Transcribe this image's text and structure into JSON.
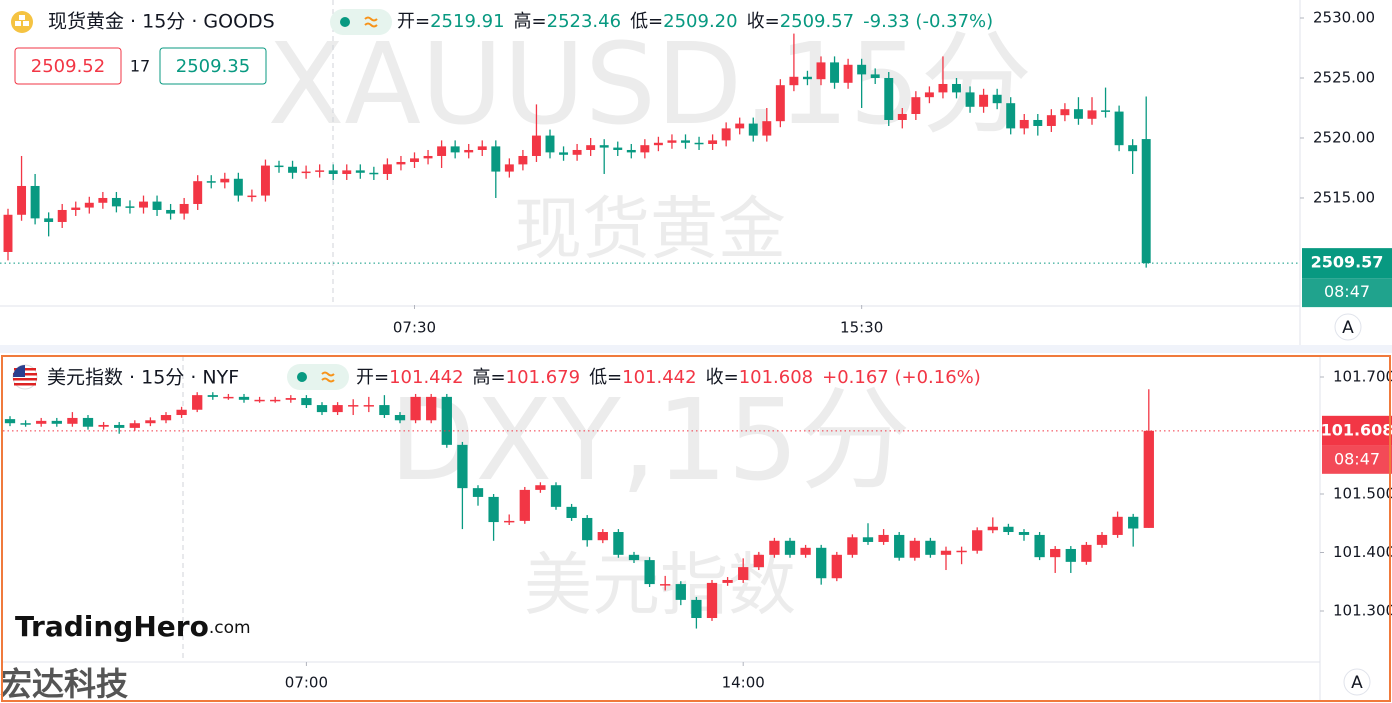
{
  "chart_data": [
    {
      "type": "candlestick",
      "title": "现货黄金 · 15分 · GOODS",
      "watermark": "XAUUSD,15分",
      "watermark_name": "现货黄金",
      "ohlc": [
        {
          "label": "开=",
          "value": "2519.91"
        },
        {
          "label": "高=",
          "value": "2523.46"
        },
        {
          "label": "低=",
          "value": "2509.20"
        },
        {
          "label": "收=",
          "value": "2509.57"
        }
      ],
      "change": "-9.33 (-0.37%)",
      "header_color": "#089981",
      "quote": {
        "bid": "2509.52",
        "spread": "17",
        "ask": "2509.35"
      },
      "countdown": "08:47",
      "scale_button": "A",
      "up_color": "#f23645",
      "down_color": "#089981",
      "grid": false,
      "ylim": [
        2506.08,
        2531.5
      ],
      "yticks": [
        {
          "value": 2530,
          "label": "2530.00"
        },
        {
          "value": 2525,
          "label": "2525.00"
        },
        {
          "value": 2520,
          "label": "2520.00"
        },
        {
          "value": 2515,
          "label": "2515.00"
        }
      ],
      "categories": [
        null,
        null,
        null,
        null,
        null,
        null,
        null,
        null,
        null,
        null,
        null,
        null,
        null,
        null,
        null,
        null,
        null,
        null,
        null,
        null,
        null,
        null,
        null,
        null,
        null,
        null,
        null,
        null,
        null,
        null,
        "07:30",
        null,
        null,
        null,
        null,
        null,
        null,
        null,
        null,
        null,
        null,
        null,
        null,
        null,
        null,
        null,
        null,
        null,
        null,
        null,
        null,
        null,
        null,
        null,
        null,
        null,
        null,
        null,
        null,
        null,
        null,
        null,
        null,
        "15:30",
        null,
        null,
        null,
        null,
        null,
        null,
        null,
        null,
        null,
        null,
        null,
        null,
        null,
        null,
        null,
        null,
        null,
        null,
        null,
        null,
        null
      ],
      "open": [
        2510.5,
        2513.6,
        2516.0,
        2513.3,
        2513.0,
        2514.0,
        2514.2,
        2514.6,
        2515.0,
        2514.3,
        2514.2,
        2514.7,
        2514.0,
        2513.7,
        2514.5,
        2516.4,
        2516.3,
        2516.6,
        2515.2,
        2515.2,
        2517.7,
        2517.6,
        2517.1,
        2517.2,
        2517.3,
        2517.0,
        2517.3,
        2517.1,
        2517.0,
        2517.8,
        2518.0,
        2518.3,
        2518.5,
        2519.3,
        2518.8,
        2519.0,
        2519.3,
        2517.2,
        2517.8,
        2518.5,
        2520.2,
        2518.8,
        2518.6,
        2519.0,
        2519.4,
        2519.2,
        2519.0,
        2518.8,
        2519.4,
        2519.6,
        2519.8,
        2519.6,
        2519.5,
        2519.8,
        2520.8,
        2521.2,
        2520.2,
        2521.4,
        2524.4,
        2525.1,
        2524.9,
        2526.3,
        2524.6,
        2526.1,
        2525.3,
        2525.0,
        2521.5,
        2522.0,
        2523.4,
        2523.8,
        2524.5,
        2523.8,
        2522.6,
        2523.6,
        2522.9,
        2520.8,
        2521.5,
        2521.0,
        2521.9,
        2522.4,
        2521.6,
        2522.3,
        2522.2,
        2519.4,
        2519.91
      ],
      "high": [
        2514.1,
        2518.5,
        2517.0,
        2513.8,
        2514.5,
        2514.7,
        2515.1,
        2515.5,
        2515.5,
        2514.8,
        2515.2,
        2515.2,
        2514.5,
        2515.0,
        2516.9,
        2516.9,
        2517.1,
        2517.1,
        2515.7,
        2518.2,
        2518.1,
        2518.1,
        2517.7,
        2517.8,
        2517.8,
        2517.8,
        2517.8,
        2517.6,
        2518.3,
        2518.5,
        2518.8,
        2519.0,
        2519.8,
        2519.8,
        2519.5,
        2519.8,
        2519.8,
        2518.3,
        2519.0,
        2522.8,
        2520.7,
        2519.3,
        2519.5,
        2520.0,
        2519.9,
        2519.7,
        2519.5,
        2519.9,
        2520.1,
        2520.3,
        2520.3,
        2520.1,
        2520.3,
        2521.3,
        2521.7,
        2521.7,
        2522.5,
        2524.9,
        2528.7,
        2525.6,
        2526.8,
        2526.8,
        2526.6,
        2526.6,
        2525.8,
        2525.5,
        2522.5,
        2523.9,
        2524.3,
        2526.8,
        2525.0,
        2524.3,
        2524.1,
        2524.1,
        2523.4,
        2522.0,
        2522.0,
        2522.4,
        2522.9,
        2523.4,
        2523.4,
        2524.2,
        2522.7,
        2519.9,
        2523.46
      ],
      "low": [
        2509.8,
        2513.1,
        2512.8,
        2511.8,
        2512.5,
        2513.5,
        2513.7,
        2514.1,
        2513.8,
        2513.7,
        2513.7,
        2513.5,
        2513.2,
        2513.2,
        2514.0,
        2515.8,
        2515.8,
        2514.7,
        2514.7,
        2514.7,
        2517.1,
        2516.6,
        2516.6,
        2516.7,
        2516.5,
        2516.5,
        2516.6,
        2516.5,
        2516.5,
        2517.3,
        2517.5,
        2517.8,
        2517.5,
        2518.3,
        2518.3,
        2518.5,
        2515.0,
        2516.7,
        2517.3,
        2518.0,
        2518.3,
        2518.1,
        2518.1,
        2518.5,
        2517.0,
        2518.5,
        2518.3,
        2518.3,
        2518.9,
        2519.1,
        2519.1,
        2519.0,
        2519.0,
        2519.3,
        2520.3,
        2519.7,
        2519.7,
        2520.9,
        2523.9,
        2524.4,
        2524.4,
        2524.1,
        2524.1,
        2522.5,
        2524.5,
        2521.0,
        2520.8,
        2521.5,
        2522.9,
        2523.3,
        2523.3,
        2522.1,
        2522.1,
        2522.4,
        2520.3,
        2520.3,
        2520.2,
        2520.5,
        2521.4,
        2521.1,
        2521.1,
        2521.7,
        2518.9,
        2517.0,
        2509.2
      ],
      "close": [
        2513.6,
        2516.0,
        2513.3,
        2513.0,
        2514.0,
        2514.2,
        2514.6,
        2515.0,
        2514.3,
        2514.2,
        2514.7,
        2514.0,
        2513.7,
        2514.5,
        2516.4,
        2516.3,
        2516.6,
        2515.2,
        2515.2,
        2517.7,
        2517.6,
        2517.1,
        2517.2,
        2517.3,
        2517.0,
        2517.3,
        2517.1,
        2517.0,
        2517.8,
        2518.0,
        2518.3,
        2518.5,
        2519.3,
        2518.8,
        2519.0,
        2519.3,
        2517.2,
        2517.8,
        2518.5,
        2520.2,
        2518.8,
        2518.6,
        2519.0,
        2519.4,
        2519.2,
        2519.0,
        2518.8,
        2519.4,
        2519.6,
        2519.8,
        2519.6,
        2519.5,
        2519.8,
        2520.8,
        2521.2,
        2520.2,
        2521.4,
        2524.4,
        2525.1,
        2524.9,
        2526.3,
        2524.6,
        2526.1,
        2525.3,
        2525.0,
        2521.5,
        2522.0,
        2523.4,
        2523.8,
        2524.5,
        2523.8,
        2522.6,
        2523.6,
        2522.9,
        2520.8,
        2521.5,
        2521.0,
        2521.9,
        2522.4,
        2521.6,
        2522.3,
        2522.2,
        2519.4,
        2518.9,
        2509.57
      ]
    },
    {
      "type": "candlestick",
      "title": "美元指数 · 15分 · NYF",
      "watermark": "DXY,15分",
      "watermark_name": "美元指数",
      "ohlc": [
        {
          "label": "开=",
          "value": "101.442"
        },
        {
          "label": "高=",
          "value": "101.679"
        },
        {
          "label": "低=",
          "value": "101.442"
        },
        {
          "label": "收=",
          "value": "101.608"
        }
      ],
      "change": "+0.167 (+0.16%)",
      "header_color": "#f23645",
      "countdown": "08:47",
      "scale_button": "A",
      "up_color": "#f23645",
      "down_color": "#089981",
      "grid": false,
      "ylim": [
        101.2128,
        101.7376
      ],
      "yticks": [
        {
          "value": 101.7,
          "label": "101.700"
        },
        {
          "value": 101.5,
          "label": "101.500"
        },
        {
          "value": 101.4,
          "label": "101.400"
        },
        {
          "value": 101.3,
          "label": "101.300"
        }
      ],
      "categories": [
        null,
        null,
        null,
        null,
        null,
        null,
        null,
        null,
        null,
        null,
        null,
        null,
        null,
        null,
        null,
        null,
        null,
        null,
        null,
        "07:00",
        null,
        null,
        null,
        null,
        null,
        null,
        null,
        null,
        null,
        null,
        null,
        null,
        null,
        null,
        null,
        null,
        null,
        null,
        null,
        null,
        null,
        null,
        null,
        null,
        null,
        null,
        null,
        "14:00",
        null,
        null,
        null,
        null,
        null,
        null,
        null,
        null,
        null,
        null,
        null,
        null,
        null,
        null,
        null,
        null,
        null,
        null,
        null,
        null,
        null,
        null,
        null,
        null,
        null,
        null
      ],
      "open": [
        101.628,
        101.621,
        101.62,
        101.625,
        101.62,
        101.63,
        101.615,
        101.618,
        101.613,
        101.621,
        101.626,
        101.635,
        101.644,
        101.669,
        101.666,
        101.666,
        101.661,
        101.661,
        101.661,
        101.664,
        101.652,
        101.64,
        101.652,
        101.652,
        101.652,
        101.635,
        101.626,
        101.626,
        101.666,
        101.584,
        101.51,
        101.495,
        101.452,
        101.454,
        101.507,
        101.515,
        101.478,
        101.459,
        101.421,
        101.435,
        101.396,
        101.387,
        101.346,
        101.346,
        101.319,
        101.288,
        101.348,
        101.353,
        101.375,
        101.396,
        101.42,
        101.396,
        101.408,
        101.356,
        101.396,
        101.426,
        101.418,
        101.43,
        101.391,
        101.42,
        101.396,
        101.403,
        101.403,
        101.438,
        101.444,
        101.435,
        101.43,
        101.392,
        101.406,
        101.384,
        101.413,
        101.43,
        101.461,
        101.442
      ],
      "high": [
        101.633,
        101.626,
        101.63,
        101.63,
        101.64,
        101.635,
        101.623,
        101.623,
        101.626,
        101.631,
        101.64,
        101.649,
        101.674,
        101.674,
        101.671,
        101.671,
        101.666,
        101.666,
        101.669,
        101.669,
        101.657,
        101.657,
        101.662,
        101.666,
        101.669,
        101.64,
        101.671,
        101.671,
        101.671,
        101.589,
        101.515,
        101.5,
        101.465,
        101.512,
        101.52,
        101.52,
        101.483,
        101.464,
        101.44,
        101.44,
        101.401,
        101.392,
        101.36,
        101.351,
        101.324,
        101.353,
        101.358,
        101.39,
        101.401,
        101.425,
        101.425,
        101.413,
        101.413,
        101.401,
        101.431,
        101.45,
        101.44,
        101.435,
        101.425,
        101.425,
        101.41,
        101.41,
        101.443,
        101.46,
        101.449,
        101.44,
        101.435,
        101.411,
        101.411,
        101.418,
        101.435,
        101.47,
        101.466,
        101.679
      ],
      "low": [
        101.616,
        101.615,
        101.615,
        101.615,
        101.615,
        101.61,
        101.61,
        101.603,
        101.608,
        101.616,
        101.621,
        101.63,
        101.64,
        101.661,
        101.661,
        101.656,
        101.656,
        101.656,
        101.656,
        101.647,
        101.635,
        101.635,
        101.635,
        101.64,
        101.63,
        101.621,
        101.621,
        101.621,
        101.579,
        101.44,
        101.48,
        101.42,
        101.447,
        101.449,
        101.502,
        101.473,
        101.454,
        101.41,
        101.416,
        101.391,
        101.382,
        101.341,
        101.335,
        101.31,
        101.27,
        101.283,
        101.343,
        101.348,
        101.37,
        101.391,
        101.391,
        101.391,
        101.345,
        101.351,
        101.391,
        101.413,
        101.413,
        101.386,
        101.386,
        101.391,
        101.37,
        101.38,
        101.398,
        101.433,
        101.43,
        101.42,
        101.387,
        101.365,
        101.365,
        101.379,
        101.408,
        101.425,
        101.41,
        101.442
      ],
      "close": [
        101.621,
        101.62,
        101.625,
        101.62,
        101.63,
        101.615,
        101.618,
        101.613,
        101.621,
        101.626,
        101.635,
        101.644,
        101.669,
        101.666,
        101.666,
        101.661,
        101.661,
        101.661,
        101.664,
        101.652,
        101.64,
        101.652,
        101.652,
        101.652,
        101.635,
        101.626,
        101.666,
        101.666,
        101.584,
        101.51,
        101.495,
        101.452,
        101.454,
        101.507,
        101.515,
        101.478,
        101.459,
        101.421,
        101.435,
        101.396,
        101.387,
        101.346,
        101.346,
        101.319,
        101.288,
        101.348,
        101.353,
        101.375,
        101.396,
        101.42,
        101.396,
        101.408,
        101.356,
        101.396,
        101.426,
        101.418,
        101.43,
        101.391,
        101.42,
        101.396,
        101.403,
        101.403,
        101.438,
        101.444,
        101.435,
        101.43,
        101.392,
        101.406,
        101.384,
        101.413,
        101.43,
        101.461,
        101.441,
        101.608
      ]
    }
  ],
  "brand": {
    "name": "TradingHero",
    "suffix": ".com"
  },
  "corner_mark": "宏达科技"
}
